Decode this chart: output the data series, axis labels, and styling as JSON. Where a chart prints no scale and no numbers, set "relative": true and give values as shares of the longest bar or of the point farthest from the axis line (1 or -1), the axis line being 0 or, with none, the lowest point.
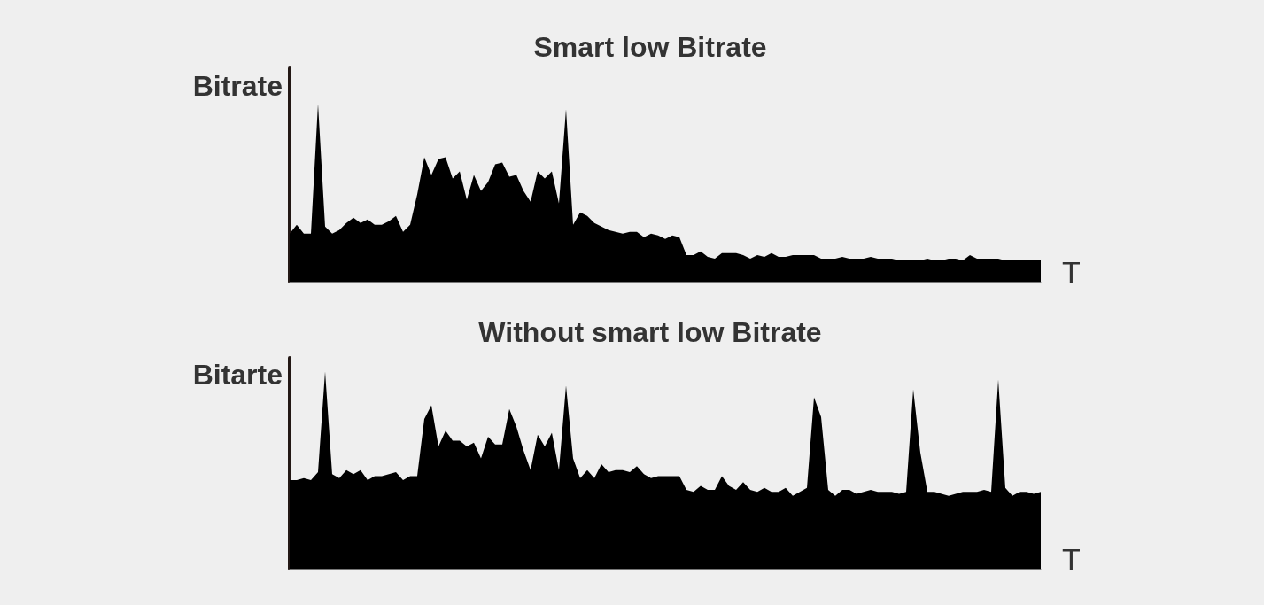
{
  "chart_data": [
    {
      "type": "area",
      "title": "Smart low Bitrate",
      "ylabel": "Bitrate",
      "xlabel": "T",
      "relative": true,
      "categories": [
        null,
        null,
        null,
        null,
        null,
        null,
        null,
        null,
        null,
        null,
        null,
        null,
        null,
        null,
        null,
        null,
        null,
        null,
        null,
        null,
        null,
        null,
        null,
        null,
        null,
        null,
        null,
        null,
        null,
        null,
        null,
        null,
        null,
        null,
        null,
        null,
        null,
        null,
        null,
        null,
        null,
        null,
        null,
        null,
        null,
        null,
        null,
        null,
        null,
        null,
        null,
        null,
        null,
        null,
        null,
        null,
        null,
        null,
        null,
        null,
        null,
        null,
        null,
        null,
        null,
        null,
        null,
        null,
        null,
        null,
        null,
        null,
        null,
        null,
        null,
        null,
        null,
        null,
        null,
        null,
        null,
        null,
        null,
        null,
        null,
        null,
        null,
        null,
        null,
        null,
        null,
        null,
        null,
        null,
        null,
        null,
        null,
        null,
        null,
        null,
        null,
        null,
        null,
        null,
        null,
        null,
        null
      ],
      "series": [
        {
          "color": "#000000",
          "values": [
            0.27,
            0.32,
            0.27,
            0.27,
            1.0,
            0.31,
            0.27,
            0.29,
            0.33,
            0.36,
            0.33,
            0.35,
            0.32,
            0.32,
            0.34,
            0.37,
            0.28,
            0.32,
            0.49,
            0.7,
            0.6,
            0.69,
            0.7,
            0.58,
            0.62,
            0.46,
            0.6,
            0.51,
            0.56,
            0.66,
            0.67,
            0.59,
            0.6,
            0.51,
            0.45,
            0.62,
            0.58,
            0.62,
            0.44,
            0.97,
            0.32,
            0.39,
            0.37,
            0.33,
            0.31,
            0.29,
            0.28,
            0.27,
            0.28,
            0.28,
            0.25,
            0.27,
            0.26,
            0.24,
            0.26,
            0.25,
            0.15,
            0.15,
            0.17,
            0.14,
            0.13,
            0.16,
            0.16,
            0.16,
            0.15,
            0.13,
            0.15,
            0.14,
            0.16,
            0.14,
            0.14,
            0.15,
            0.15,
            0.15,
            0.15,
            0.13,
            0.13,
            0.13,
            0.14,
            0.13,
            0.13,
            0.13,
            0.14,
            0.13,
            0.13,
            0.13,
            0.12,
            0.12,
            0.12,
            0.12,
            0.13,
            0.12,
            0.12,
            0.13,
            0.13,
            0.12,
            0.15,
            0.13,
            0.13,
            0.13,
            0.13,
            0.12,
            0.12,
            0.12,
            0.12,
            0.12,
            0.12
          ]
        }
      ]
    },
    {
      "type": "area",
      "title": "Without smart low Bitrate",
      "ylabel": "Bitarte",
      "xlabel": "T",
      "relative": true,
      "categories": [
        null,
        null,
        null,
        null,
        null,
        null,
        null,
        null,
        null,
        null,
        null,
        null,
        null,
        null,
        null,
        null,
        null,
        null,
        null,
        null,
        null,
        null,
        null,
        null,
        null,
        null,
        null,
        null,
        null,
        null,
        null,
        null,
        null,
        null,
        null,
        null,
        null,
        null,
        null,
        null,
        null,
        null,
        null,
        null,
        null,
        null,
        null,
        null,
        null,
        null,
        null,
        null,
        null,
        null,
        null,
        null,
        null,
        null,
        null,
        null,
        null,
        null,
        null,
        null,
        null,
        null,
        null,
        null,
        null,
        null,
        null,
        null,
        null,
        null,
        null,
        null,
        null,
        null,
        null,
        null,
        null,
        null,
        null,
        null,
        null,
        null,
        null,
        null,
        null,
        null,
        null,
        null,
        null,
        null,
        null,
        null,
        null,
        null,
        null,
        null,
        null,
        null,
        null,
        null,
        null,
        null,
        null
      ],
      "series": [
        {
          "color": "#000000",
          "values": [
            0.45,
            0.45,
            0.46,
            0.45,
            0.49,
            1.0,
            0.48,
            0.46,
            0.5,
            0.48,
            0.5,
            0.45,
            0.47,
            0.47,
            0.48,
            0.49,
            0.45,
            0.47,
            0.47,
            0.76,
            0.83,
            0.62,
            0.7,
            0.65,
            0.65,
            0.62,
            0.64,
            0.56,
            0.67,
            0.63,
            0.63,
            0.81,
            0.72,
            0.6,
            0.5,
            0.68,
            0.62,
            0.69,
            0.5,
            0.93,
            0.56,
            0.46,
            0.5,
            0.46,
            0.53,
            0.49,
            0.5,
            0.5,
            0.49,
            0.52,
            0.48,
            0.46,
            0.47,
            0.47,
            0.47,
            0.47,
            0.4,
            0.39,
            0.42,
            0.4,
            0.4,
            0.47,
            0.42,
            0.4,
            0.44,
            0.4,
            0.39,
            0.41,
            0.39,
            0.39,
            0.41,
            0.37,
            0.39,
            0.41,
            0.87,
            0.77,
            0.4,
            0.37,
            0.4,
            0.4,
            0.38,
            0.39,
            0.4,
            0.39,
            0.39,
            0.39,
            0.38,
            0.39,
            0.91,
            0.59,
            0.39,
            0.39,
            0.38,
            0.37,
            0.38,
            0.39,
            0.39,
            0.39,
            0.4,
            0.39,
            0.96,
            0.41,
            0.37,
            0.39,
            0.39,
            0.38,
            0.39
          ]
        }
      ]
    }
  ]
}
